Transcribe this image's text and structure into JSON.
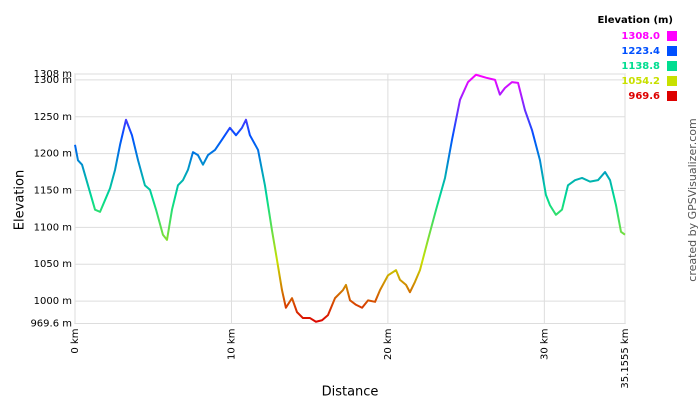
{
  "chart_data": {
    "type": "line",
    "x_label": "Distance",
    "y_label": "Elevation",
    "credit": "created by GPSVisualizer.com",
    "legend": {
      "title": "Elevation (m)",
      "stops": [
        {
          "value": 1308,
          "label": "1308.0",
          "color": "#ff00ff"
        },
        {
          "value": 1223.4,
          "label": "1223.4",
          "color": "#0050ff"
        },
        {
          "value": 1138.8,
          "label": "1138.8",
          "color": "#00dd90"
        },
        {
          "value": 1054.2,
          "label": "1054.2",
          "color": "#c8e000"
        },
        {
          "value": 969.6,
          "label": "969.6",
          "color": "#dd0000"
        }
      ]
    },
    "xlim": [
      0,
      35.1555
    ],
    "xticks": [
      {
        "value": 0,
        "label": "0 km"
      },
      {
        "value": 10,
        "label": "10 km"
      },
      {
        "value": 20,
        "label": "20 km"
      },
      {
        "value": 30,
        "label": "30 km"
      },
      {
        "value": 35.1555,
        "label": "35.1555 km"
      }
    ],
    "ylim": [
      969.6,
      1308
    ],
    "yticks": [
      {
        "value": 969.6,
        "label": "969.6 m"
      },
      {
        "value": 1000,
        "label": "1000 m"
      },
      {
        "value": 1050,
        "label": "1050 m"
      },
      {
        "value": 1100,
        "label": "1100 m"
      },
      {
        "value": 1150,
        "label": "1150 m"
      },
      {
        "value": 1200,
        "label": "1200 m"
      },
      {
        "value": 1250,
        "label": "1250 m"
      },
      {
        "value": 1300,
        "label": "1300 m"
      },
      {
        "value": 1308,
        "label": "1308 m"
      }
    ],
    "grid": true,
    "x": [
      0,
      0.19,
      0.45,
      0.83,
      1.28,
      1.6,
      1.92,
      2.24,
      2.56,
      2.88,
      3.26,
      3.64,
      4.03,
      4.47,
      4.79,
      5.18,
      5.62,
      5.88,
      6.2,
      6.58,
      6.9,
      7.22,
      7.54,
      7.86,
      8.18,
      8.5,
      8.95,
      9.4,
      9.9,
      10.29,
      10.67,
      10.93,
      11.18,
      11.7,
      12.14,
      12.59,
      12.91,
      13.23,
      13.48,
      13.87,
      14.19,
      14.57,
      15.02,
      15.4,
      15.79,
      16.17,
      16.62,
      17.13,
      17.32,
      17.58,
      17.96,
      18.35,
      18.73,
      19.18,
      19.5,
      20.01,
      20.52,
      20.77,
      21.16,
      21.41,
      21.73,
      22.05,
      22.56,
      23.08,
      23.65,
      24.1,
      24.61,
      25.12,
      25.63,
      26.27,
      26.85,
      27.16,
      27.48,
      27.93,
      28.32,
      28.76,
      29.21,
      29.72,
      30.1,
      30.36,
      30.74,
      31.13,
      31.51,
      31.96,
      32.41,
      32.92,
      33.43,
      33.88,
      34.2,
      34.58,
      34.9,
      35.1555
    ],
    "values": [
      1212,
      1191,
      1185,
      1157,
      1124,
      1121,
      1137,
      1153,
      1178,
      1212,
      1246,
      1225,
      1191,
      1157,
      1151,
      1124,
      1090,
      1083,
      1124,
      1157,
      1164,
      1178,
      1202,
      1198,
      1185,
      1198,
      1205,
      1219,
      1235,
      1225,
      1235,
      1246,
      1225,
      1205,
      1157,
      1096,
      1056,
      1015,
      991,
      1004,
      985,
      977,
      977,
      972,
      974,
      981,
      1004,
      1015,
      1022,
      1001,
      995,
      991,
      1001,
      999,
      1015,
      1035,
      1042,
      1029,
      1022,
      1012,
      1026,
      1042,
      1083,
      1124,
      1167,
      1219,
      1273,
      1297,
      1307,
      1303,
      1300,
      1280,
      1289,
      1297,
      1296,
      1259,
      1232,
      1191,
      1144,
      1130,
      1117,
      1124,
      1157,
      1164,
      1167,
      1162,
      1164,
      1175,
      1164,
      1130,
      1094,
      1090
    ]
  }
}
